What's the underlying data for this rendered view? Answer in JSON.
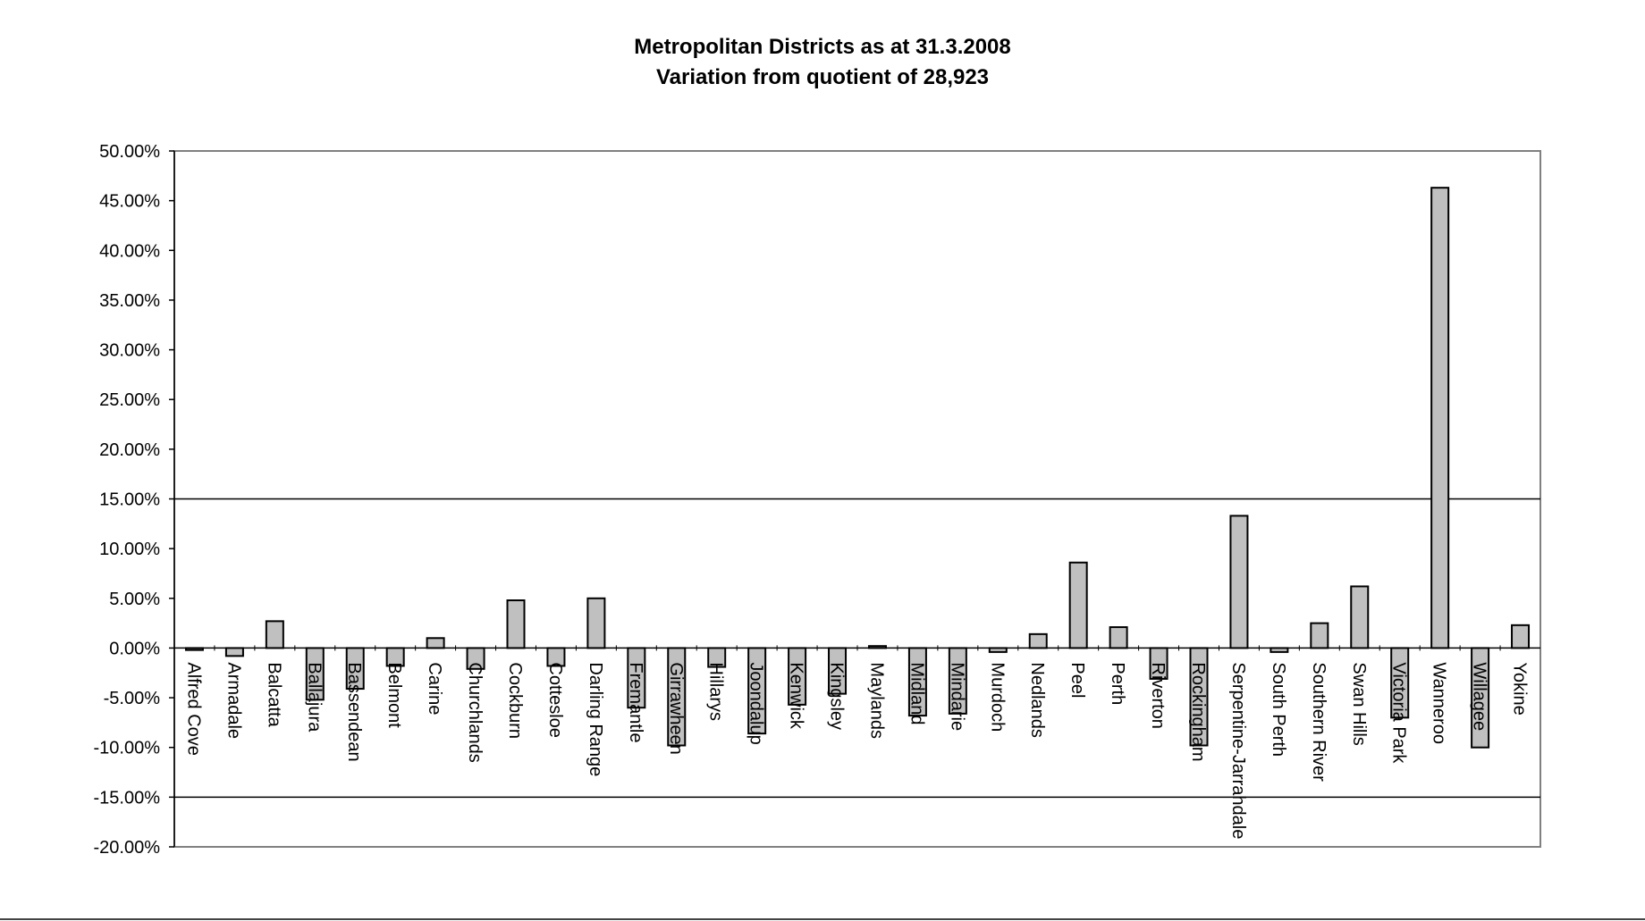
{
  "chart_data": {
    "type": "bar",
    "title": "Metropolitan Districts as at 31.3.2008",
    "subtitle": "Variation from quotient of 28,923",
    "xlabel": "",
    "ylabel": "",
    "ylim": [
      -0.2,
      0.5
    ],
    "yticks": [
      "50.00%",
      "45.00%",
      "40.00%",
      "35.00%",
      "30.00%",
      "25.00%",
      "20.00%",
      "15.00%",
      "10.00%",
      "5.00%",
      "0.00%",
      "-5.00%",
      "-10.00%",
      "-15.00%",
      "-20.00%"
    ],
    "ytick_values": [
      0.5,
      0.45,
      0.4,
      0.35,
      0.3,
      0.25,
      0.2,
      0.15,
      0.1,
      0.05,
      0.0,
      -0.05,
      -0.1,
      -0.15,
      -0.2
    ],
    "reference_lines": [
      0.15,
      -0.15
    ],
    "grid": false,
    "bar_color": "#c0c0c0",
    "categories": [
      "Alfred Cove",
      "Armadale",
      "Balcatta",
      "Ballajura",
      "Bassendean",
      "Belmont",
      "Carine",
      "Churchlands",
      "Cockburn",
      "Cottesloe",
      "Darling Range",
      "Fremantle",
      "Girrawheen",
      "Hillarys",
      "Joondalup",
      "Kenwick",
      "Kingsley",
      "Maylands",
      "Midland",
      "Mindarie",
      "Murdoch",
      "Nedlands",
      "Peel",
      "Perth",
      "Riverton",
      "Rockingham",
      "Serpentine-Jarrahdale",
      "South Perth",
      "Southern River",
      "Swan Hills",
      "Victoria Park",
      "Wanneroo",
      "Willagee",
      "Yokine"
    ],
    "values": [
      -0.002,
      -0.008,
      0.027,
      -0.052,
      -0.041,
      -0.018,
      0.01,
      -0.021,
      0.048,
      -0.018,
      0.05,
      -0.06,
      -0.098,
      -0.019,
      -0.086,
      -0.057,
      -0.046,
      0.002,
      -0.068,
      -0.066,
      -0.004,
      0.014,
      0.086,
      0.021,
      -0.031,
      -0.098,
      0.133,
      -0.004,
      0.025,
      0.062,
      -0.07,
      0.463,
      -0.1,
      0.023
    ]
  }
}
